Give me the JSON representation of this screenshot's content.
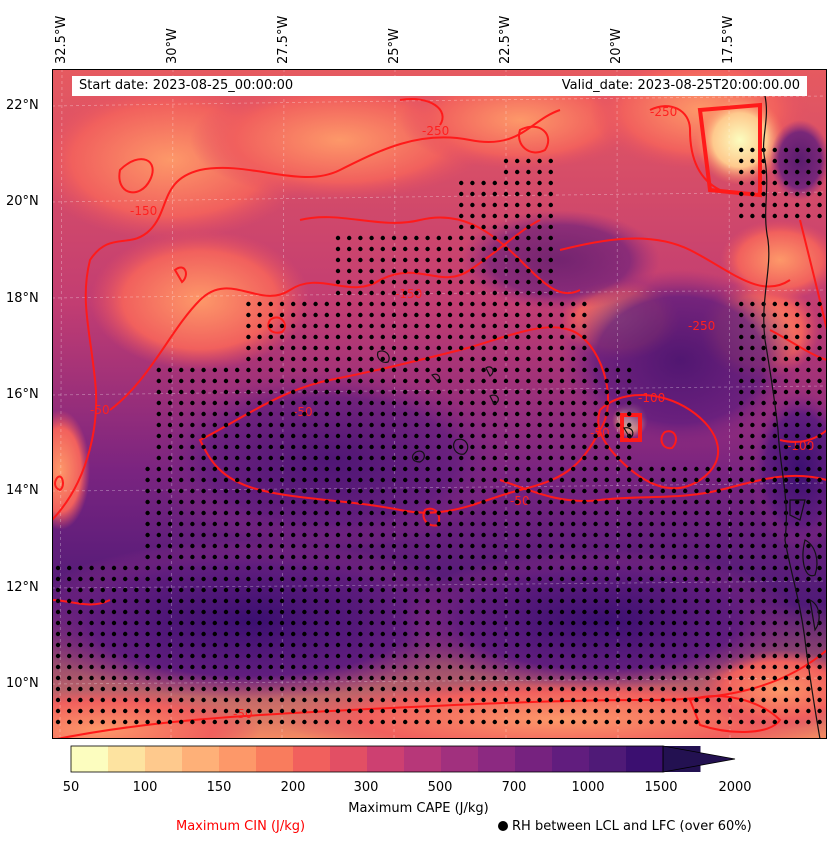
{
  "info": {
    "start_date": "Start date: 2023-08-25_00:00:00",
    "valid_date": "Valid_date: 2023-08-25T20:00:00.00"
  },
  "longitude_labels": [
    "32.5°W",
    "30°W",
    "27.5°W",
    "25°W",
    "22.5°W",
    "20°W",
    "17.5°W"
  ],
  "latitude_labels": [
    "22°N",
    "20°N",
    "18°N",
    "16°N",
    "14°N",
    "12°N",
    "10°N"
  ],
  "colorbar": {
    "ticks": [
      "50",
      "100",
      "150",
      "200",
      "300",
      "500",
      "700",
      "1000",
      "1500",
      "2000"
    ],
    "title": "Maximum CAPE (J/kg)",
    "colors": [
      "#fcfdbf",
      "#fde3a0",
      "#fec98d",
      "#feb078",
      "#fd9869",
      "#f97c5d",
      "#f1605d",
      "#e24f64",
      "#cd4071",
      "#b73779",
      "#a1307e",
      "#8c2981",
      "#76227f",
      "#611d7e",
      "#4f1a77",
      "#3b0f70",
      "#231151"
    ]
  },
  "legend": {
    "cin_label": "Maximum CIN (J/kg)",
    "cin_color": "#ff0000",
    "rh_label": "RH between LCL and LFC (over 60%)"
  },
  "contour_labels": [
    "-250",
    "-250",
    "-250",
    "-150",
    "-150",
    "-50",
    "-50",
    "-50",
    "-50",
    "-50",
    "-100",
    "-100"
  ],
  "map_extent": {
    "lon_min": -33,
    "lon_max": -15.5,
    "lat_min": 9,
    "lat_max": 22.7
  }
}
